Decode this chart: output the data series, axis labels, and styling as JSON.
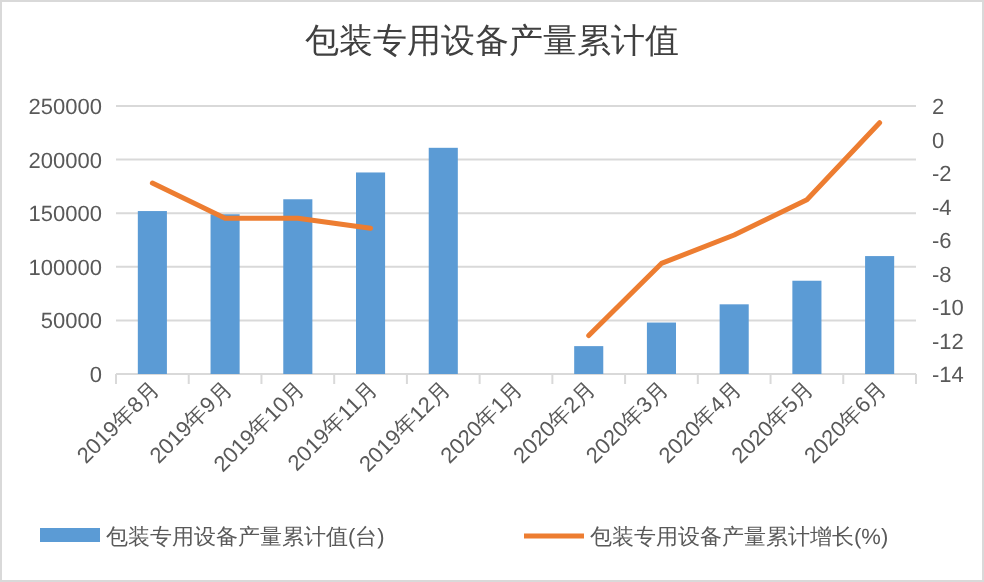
{
  "chart_data": {
    "type": "bar",
    "title": "包装专用设备产量累计值",
    "categories": [
      "2019年8月",
      "2019年9月",
      "2019年10月",
      "2019年11月",
      "2019年12月",
      "2020年1月",
      "2020年2月",
      "2020年3月",
      "2020年4月",
      "2020年5月",
      "2020年6月"
    ],
    "series": [
      {
        "name": "包装专用设备产量累计值(台)",
        "color": "#5b9bd5",
        "values": [
          152000,
          149000,
          163000,
          188000,
          211000,
          null,
          26000,
          48000,
          65000,
          87000,
          110000
        ]
      },
      {
        "name": "包装专用设备产量累计增长(%)",
        "type": "line",
        "axis": "y2",
        "color": "#ed7d31",
        "values": [
          -2.6,
          -4.7,
          -4.7,
          -5.3,
          null,
          null,
          -11.7,
          -7.4,
          -5.7,
          -3.6,
          1.0
        ]
      }
    ],
    "ylim": [
      0,
      250000
    ],
    "yticks": [
      0,
      50000,
      100000,
      150000,
      200000,
      250000
    ],
    "y2lim": [
      -14,
      2
    ],
    "y2ticks": [
      -14,
      -12,
      -10,
      -8,
      -6,
      -4,
      -2,
      0,
      2
    ],
    "grid": "y",
    "legend": "bottom",
    "marker": "none",
    "line_style": "solid"
  }
}
